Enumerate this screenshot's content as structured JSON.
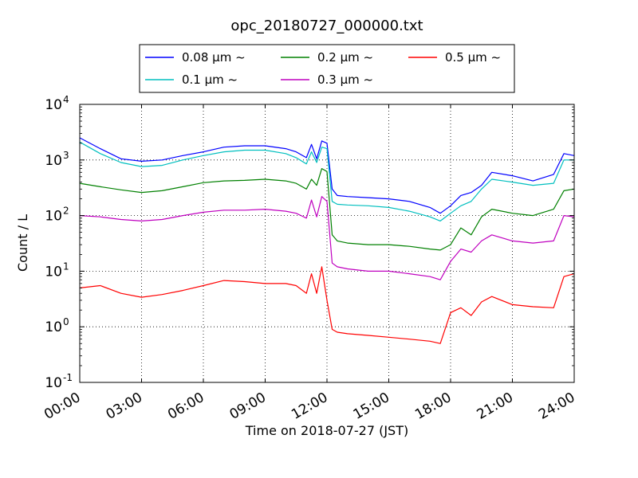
{
  "chart_data": {
    "type": "line",
    "title": "opc_20180727_000000.txt",
    "xlabel": "Time on 2018-07-27 (JST)",
    "ylabel": "Count / L",
    "yscale": "log",
    "xlim": [
      "00:00",
      "24:00"
    ],
    "ylim": [
      0.1,
      10000
    ],
    "grid": true,
    "legend_position": "top-center",
    "x_ticks": [
      "00:00",
      "03:00",
      "06:00",
      "09:00",
      "12:00",
      "15:00",
      "18:00",
      "21:00",
      "24:00"
    ],
    "y_ticks": [
      {
        "value": 0.1,
        "base": "10",
        "exp": "-1"
      },
      {
        "value": 1,
        "base": "10",
        "exp": "0"
      },
      {
        "value": 10,
        "base": "10",
        "exp": "1"
      },
      {
        "value": 100,
        "base": "10",
        "exp": "2"
      },
      {
        "value": 1000,
        "base": "10",
        "exp": "3"
      },
      {
        "value": 10000,
        "base": "10",
        "exp": "4"
      }
    ],
    "x": [
      "00:00",
      "01:00",
      "02:00",
      "03:00",
      "04:00",
      "05:00",
      "06:00",
      "07:00",
      "08:00",
      "09:00",
      "10:00",
      "10:30",
      "11:00",
      "11:15",
      "11:30",
      "11:45",
      "12:00",
      "12:15",
      "12:30",
      "13:00",
      "14:00",
      "15:00",
      "16:00",
      "17:00",
      "17:30",
      "18:00",
      "18:30",
      "19:00",
      "19:30",
      "20:00",
      "21:00",
      "22:00",
      "23:00",
      "23:30",
      "24:00"
    ],
    "series": [
      {
        "name": "0.08 μm ~",
        "color": "#0000ff",
        "values": [
          2500,
          1600,
          1050,
          950,
          1000,
          1200,
          1400,
          1700,
          1800,
          1800,
          1600,
          1400,
          1100,
          1900,
          1050,
          2200,
          2000,
          300,
          230,
          220,
          210,
          200,
          180,
          140,
          110,
          150,
          230,
          260,
          350,
          600,
          520,
          420,
          550,
          1300,
          1200
        ]
      },
      {
        "name": "0.1 μm ~",
        "color": "#00bfbf",
        "values": [
          2100,
          1300,
          900,
          760,
          800,
          1000,
          1200,
          1400,
          1500,
          1500,
          1300,
          1100,
          850,
          1400,
          900,
          1700,
          1600,
          180,
          160,
          155,
          150,
          140,
          120,
          95,
          80,
          110,
          150,
          180,
          300,
          450,
          400,
          350,
          380,
          1000,
          1000
        ]
      },
      {
        "name": "0.2 μm ~",
        "color": "#008000",
        "values": [
          380,
          330,
          290,
          260,
          280,
          330,
          390,
          420,
          430,
          450,
          420,
          380,
          300,
          450,
          350,
          700,
          620,
          45,
          35,
          32,
          30,
          30,
          28,
          25,
          24,
          30,
          60,
          45,
          95,
          130,
          110,
          100,
          130,
          280,
          300
        ]
      },
      {
        "name": "0.3 μm ~",
        "color": "#bf00bf",
        "values": [
          100,
          95,
          85,
          80,
          85,
          100,
          115,
          125,
          125,
          130,
          120,
          110,
          90,
          190,
          95,
          220,
          180,
          14,
          12,
          11,
          10,
          10,
          9,
          8,
          7,
          15,
          25,
          22,
          35,
          45,
          35,
          32,
          35,
          100,
          95
        ]
      },
      {
        "name": "0.5 μm ~",
        "color": "#ff0000",
        "values": [
          5,
          5.5,
          4,
          3.4,
          3.8,
          4.5,
          5.5,
          6.8,
          6.5,
          6,
          6,
          5.5,
          4,
          9,
          4,
          12,
          3,
          0.9,
          0.8,
          0.75,
          0.7,
          0.65,
          0.6,
          0.55,
          0.5,
          1.8,
          2.2,
          1.6,
          2.8,
          3.5,
          2.5,
          2.3,
          2.2,
          8,
          9
        ]
      }
    ]
  }
}
